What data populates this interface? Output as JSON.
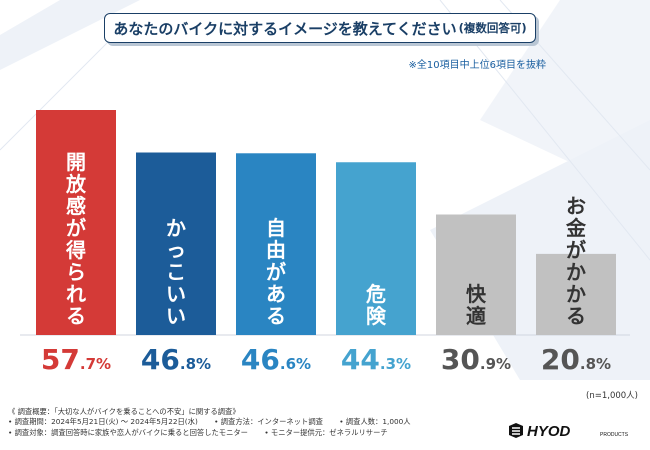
{
  "title": {
    "main": "あなたのバイクに対するイメージを教えてください",
    "sub": "(複数回答可)"
  },
  "note": "※全10項目中上位6項目を抜粋",
  "chart_data": {
    "type": "bar",
    "categories": [
      "開放感が得られる",
      "かっこいい",
      "自由がある",
      "危険",
      "快適",
      "お金がかかる"
    ],
    "values": [
      57.7,
      46.8,
      46.6,
      44.3,
      30.9,
      20.8
    ],
    "value_labels": [
      {
        "int": "57",
        "dec": ".7%"
      },
      {
        "int": "46",
        "dec": ".8%"
      },
      {
        "int": "46",
        "dec": ".6%"
      },
      {
        "int": "44",
        "dec": ".3%"
      },
      {
        "int": "30",
        "dec": ".9%"
      },
      {
        "int": "20",
        "dec": ".8%"
      }
    ],
    "colors": [
      "#d43a37",
      "#1c5c99",
      "#2a85c2",
      "#45a3cf",
      "#c1c1c1",
      "#c1c1c1"
    ],
    "label_colors": [
      "#d43a37",
      "#1c5c99",
      "#2a85c2",
      "#45a3cf",
      "#555555",
      "#555555"
    ],
    "ylim": [
      0,
      60
    ],
    "grid": false,
    "sample_size": "(n=1,000人)"
  },
  "survey": {
    "line1": "《 調査概要：「大切な人がバイクを乗ることへの不安」に関する調査》",
    "line2a": "• 調査期間：2024年5月21日(火) ～ 2024年5月22日(水)",
    "line2b": "• 調査方法：インターネット調査",
    "line2c": "• 調査人数：1,000人",
    "line3a": "• 調査対象：調査回答時に家族や恋人がバイクに乗ると回答したモニター",
    "line3b": "• モニター提供元：ゼネラルリサーチ"
  },
  "logo": {
    "text": "HYOD",
    "small": "PRODUCTS"
  }
}
